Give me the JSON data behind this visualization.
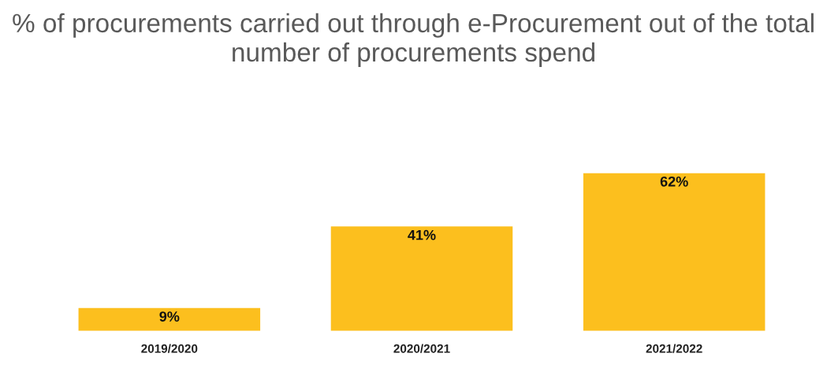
{
  "chart_data": {
    "type": "bar",
    "title": "% of procurements carried out through e-Procurement out of the total number of procurements spend",
    "categories": [
      "2019/2020",
      "2020/2021",
      "2021/2022"
    ],
    "values": [
      9,
      41,
      62
    ],
    "value_labels": [
      "9%",
      "41%",
      "62%"
    ],
    "color": "#fcbf1e",
    "grid": false,
    "legend": false
  }
}
